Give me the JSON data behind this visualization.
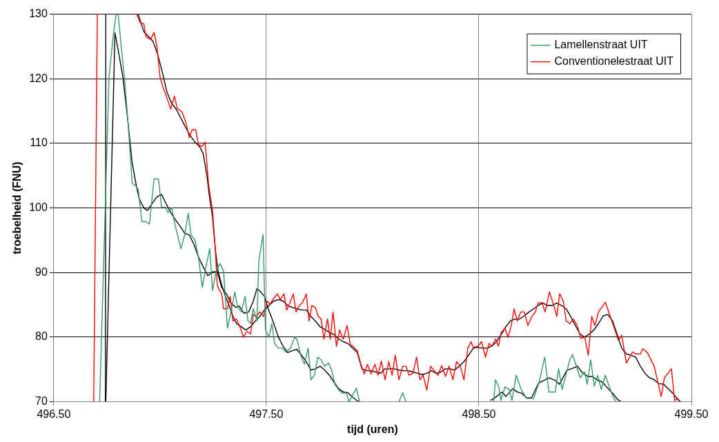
{
  "chart_data": {
    "type": "line",
    "xlabel": "tijd (uren)",
    "ylabel": "troebelheid (FNU)",
    "xlim": [
      496.5,
      499.5
    ],
    "xticks": [
      {
        "value": 496.5,
        "label": "496.50"
      },
      {
        "value": 497.5,
        "label": "497.50"
      },
      {
        "value": 498.5,
        "label": "498.50"
      },
      {
        "value": 499.5,
        "label": "499.50"
      }
    ],
    "ylim": [
      70,
      130
    ],
    "yticks": [
      70,
      80,
      90,
      100,
      110,
      120,
      130
    ],
    "grid": true,
    "legend": "top right",
    "marker": "none",
    "line_style": "solid",
    "series": [
      {
        "name": "Lamellenstraat UIT",
        "color": "#339966",
        "x": [
          496.716,
          496.76,
          496.782,
          496.793,
          496.798,
          496.803,
          496.819,
          496.836,
          496.854,
          496.869,
          496.884,
          496.897,
          496.915,
          496.932,
          496.95,
          496.972,
          496.993,
          497.007,
          497.024,
          497.037,
          497.055,
          497.072,
          497.098,
          497.116,
          497.133,
          497.146,
          497.164,
          497.181,
          497.199,
          497.216,
          497.234,
          497.247,
          497.264,
          497.282,
          497.299,
          497.317,
          497.334,
          497.352,
          497.365,
          497.382,
          497.4,
          497.413,
          497.426,
          497.439,
          497.456,
          497.465,
          497.485,
          497.496,
          497.513,
          497.526,
          497.539,
          497.557,
          497.574,
          497.592,
          497.614,
          497.633,
          497.644,
          497.662,
          497.679,
          497.697,
          497.71,
          497.727,
          497.742,
          497.758,
          497.775,
          497.793,
          497.808,
          497.823,
          497.841,
          497.858,
          497.876,
          497.889,
          497.924,
          497.939,
          498.0,
          498.124,
          498.142,
          498.157,
          498.3,
          498.57,
          498.578,
          498.594,
          498.604,
          498.623,
          498.643,
          498.656,
          498.676,
          498.699,
          498.725,
          498.758,
          498.784,
          498.81,
          498.83,
          498.859,
          498.875,
          498.892,
          498.928,
          498.941,
          498.977,
          498.997,
          499.01,
          499.026,
          499.043,
          499.059,
          499.076,
          499.095,
          499.118,
          499.131,
          499.144
        ],
        "values": [
          70,
          120.3,
          127.3,
          130,
          null,
          130,
          124.5,
          118.9,
          111.2,
          103.8,
          103.5,
          102.9,
          97.9,
          97.9,
          97.5,
          104.5,
          104.5,
          100.1,
          100.1,
          99.3,
          100.0,
          97.2,
          93.7,
          95.8,
          99.2,
          95.8,
          95.1,
          92.3,
          87.7,
          90.9,
          93.7,
          87.2,
          90.2,
          91.4,
          90.2,
          81.4,
          83.9,
          87.0,
          84.7,
          83.9,
          86.3,
          82.6,
          82.1,
          84.4,
          82.5,
          91.9,
          95.9,
          81.1,
          80.0,
          82.1,
          79.0,
          78.3,
          78.3,
          77.7,
          78.3,
          80.0,
          79.7,
          77.2,
          75.8,
          78.3,
          73.4,
          74.1,
          76.9,
          76.5,
          75.5,
          76.0,
          74.8,
          72.7,
          71.8,
          71.3,
          71.4,
          70.0,
          72.1,
          70.0,
          null,
          70,
          71.4,
          70,
          null,
          70,
          73.4,
          72.3,
          70.2,
          72.3,
          71.9,
          70.2,
          74.1,
          71.9,
          70.5,
          70.5,
          73.1,
          76.9,
          71.5,
          71.5,
          75.1,
          71.9,
          76.5,
          77.3,
          73.7,
          74.6,
          72.7,
          76.5,
          72.4,
          74.1,
          71.9,
          74.1,
          71.9,
          70.8,
          70.1
        ]
      },
      {
        "name": "Conventionelestraat UIT",
        "color": "#ff0000",
        "x": [
          496.688,
          496.705,
          496.8,
          496.891,
          496.906,
          496.924,
          496.934,
          496.956,
          496.972,
          496.985,
          497.0,
          497.015,
          497.033,
          497.05,
          497.068,
          497.081,
          497.103,
          497.12,
          497.138,
          497.151,
          497.168,
          497.181,
          497.197,
          497.212,
          497.229,
          497.247,
          497.26,
          497.269,
          497.277,
          497.29,
          497.299,
          497.317,
          497.33,
          497.343,
          497.36,
          497.378,
          497.393,
          497.408,
          497.426,
          497.439,
          497.454,
          497.469,
          497.487,
          497.504,
          497.517,
          497.535,
          497.552,
          497.566,
          497.583,
          497.596,
          497.611,
          497.627,
          497.64,
          497.655,
          497.67,
          497.688,
          497.701,
          497.714,
          497.731,
          497.745,
          497.758,
          497.771,
          497.788,
          497.801,
          497.814,
          497.83,
          497.845,
          497.862,
          497.88,
          497.895,
          497.91,
          497.928,
          497.945,
          497.961,
          497.976,
          497.993,
          498.011,
          498.026,
          498.041,
          498.059,
          498.076,
          498.092,
          498.107,
          498.124,
          498.142,
          498.157,
          498.172,
          498.19,
          498.207,
          498.223,
          498.238,
          498.255,
          498.273,
          498.29,
          498.308,
          498.325,
          498.343,
          498.36,
          498.378,
          498.395,
          498.413,
          498.43,
          498.448,
          498.463,
          498.474,
          498.496,
          498.513,
          498.531,
          498.548,
          498.561,
          498.579,
          498.592,
          498.605,
          498.622,
          498.638,
          498.653,
          498.666,
          498.681,
          498.697,
          498.714,
          498.731,
          498.749,
          498.766,
          498.779,
          498.797,
          498.812,
          498.832,
          498.849,
          498.867,
          498.88,
          498.897,
          498.911,
          498.928,
          498.945,
          498.963,
          498.98,
          498.998,
          499.015,
          499.031,
          499.046,
          499.063,
          499.095,
          499.157,
          499.172,
          499.194,
          499.223,
          499.238,
          499.26,
          499.271,
          499.293,
          499.325,
          499.358,
          499.373,
          499.406,
          499.421,
          499.439
        ],
        "values": [
          70,
          130,
          null,
          130,
          128.7,
          128.5,
          126.5,
          126.1,
          127.2,
          125.1,
          120.3,
          118.6,
          117.0,
          115.3,
          117.3,
          115.4,
          114.9,
          113.4,
          110.9,
          112.1,
          112.1,
          109.8,
          109.5,
          110.2,
          103.5,
          99.6,
          93.7,
          88.1,
          87.4,
          86.7,
          84.4,
          84.4,
          86.3,
          82.5,
          82.8,
          81.4,
          80.0,
          80.9,
          80.5,
          83.5,
          83.2,
          83.9,
          83.2,
          85.6,
          85.1,
          86.0,
          86.7,
          85.8,
          86.7,
          84.2,
          85.3,
          86.7,
          83.9,
          84.9,
          85.3,
          86.7,
          82.5,
          84.9,
          84.6,
          83.2,
          82.8,
          79.7,
          82.8,
          79.7,
          83.9,
          78.6,
          81.1,
          79.7,
          81.8,
          78.9,
          78.5,
          77.9,
          75.8,
          74.3,
          75.8,
          74.3,
          75.8,
          74.1,
          76.3,
          73.4,
          76.2,
          74.1,
          77.2,
          73.4,
          75.5,
          75.5,
          74.1,
          74.4,
          76.9,
          73.4,
          74.1,
          71.8,
          75.5,
          74.8,
          74.1,
          75.6,
          73.9,
          75.5,
          73.4,
          76.2,
          75.5,
          73.4,
          78.3,
          79.3,
          78.4,
          78.6,
          79.3,
          76.9,
          79.0,
          78.6,
          79.7,
          78.6,
          80.7,
          81.4,
          80.0,
          81.9,
          84.4,
          82.5,
          83.9,
          83.9,
          81.8,
          83.2,
          83.9,
          85.3,
          85.3,
          83.9,
          87.0,
          85.3,
          83.2,
          86.7,
          85.6,
          82.5,
          82.1,
          82.8,
          81.8,
          79.8,
          80.0,
          77.2,
          83.2,
          81.8,
          83.9,
          85.4,
          79.5,
          80.3,
          76.0,
          77.7,
          77.4,
          77.4,
          78.2,
          77.6,
          75.5,
          70.8,
          73.7,
          75.1,
          70.2,
          70.5
        ]
      },
      {
        "color": "#000000",
        "x": [
          496.745,
          496.788,
          496.803,
          496.825,
          496.847,
          496.869,
          496.884,
          496.902,
          496.924,
          496.941,
          496.963,
          496.985,
          497.007,
          497.028,
          497.05,
          497.072,
          497.094,
          497.116,
          497.138,
          497.159,
          497.181,
          497.203,
          497.225,
          497.247,
          497.269,
          497.29,
          497.312,
          497.334,
          497.356,
          497.373,
          497.395,
          497.417,
          497.439,
          497.456,
          497.474,
          497.491,
          497.509,
          497.531,
          497.557,
          497.579,
          497.6,
          497.622,
          497.644,
          497.666,
          497.688,
          497.71,
          497.731,
          497.753,
          497.775,
          497.797,
          497.819,
          497.841,
          497.863,
          497.884,
          497.906,
          497.926,
          497.935,
          498.0,
          498.55,
          498.555,
          498.571,
          498.61,
          498.627,
          498.659,
          498.682,
          498.702,
          498.725,
          498.748,
          498.781,
          498.8,
          498.83,
          498.859,
          498.879,
          498.915,
          498.935,
          498.964,
          498.984,
          499.013,
          499.033,
          499.056,
          499.079,
          499.098,
          499.127,
          499.154,
          499.167
        ],
        "values": [
          70,
          127.1,
          124.5,
          120.3,
          114.0,
          107.0,
          104.2,
          101.4,
          100.0,
          99.6,
          100.7,
          101.7,
          102.1,
          100.7,
          99.3,
          98.2,
          97.2,
          96.1,
          95.8,
          94.4,
          92.4,
          90.9,
          89.5,
          90.1,
          90.2,
          87.7,
          86.7,
          85.3,
          84.6,
          84.8,
          83.7,
          83.9,
          85.6,
          87.5,
          87.0,
          86.3,
          84.4,
          82.5,
          80.0,
          78.6,
          77.6,
          77.9,
          78.1,
          77.2,
          76.2,
          74.9,
          75.1,
          75.5,
          74.9,
          74.1,
          73.0,
          72.0,
          71.5,
          71.4,
          70.7,
          70.2,
          70.0,
          null,
          null,
          70.2,
          70.5,
          71.5,
          70.8,
          72.0,
          71.5,
          71.3,
          70.6,
          70.6,
          72.9,
          73.2,
          73.7,
          73.3,
          72.7,
          74.9,
          75.1,
          75.5,
          74.6,
          73.9,
          73.9,
          73.4,
          73.1,
          72.4,
          71.4,
          70.3,
          70.1
        ]
      },
      {
        "color": "#000000",
        "x": [
          496.743,
          496.745,
          496.82,
          496.897,
          496.924,
          496.945,
          496.967,
          496.989,
          497.011,
          497.033,
          497.055,
          497.076,
          497.098,
          497.12,
          497.142,
          497.164,
          497.186,
          497.203,
          497.221,
          497.234,
          497.247,
          497.26,
          497.273,
          497.29,
          497.308,
          497.325,
          497.343,
          497.36,
          497.382,
          497.404,
          497.426,
          497.448,
          497.469,
          497.491,
          497.513,
          497.535,
          497.557,
          497.579,
          497.6,
          497.622,
          497.644,
          497.666,
          497.688,
          497.71,
          497.731,
          497.753,
          497.775,
          497.797,
          497.819,
          497.841,
          497.862,
          497.884,
          497.906,
          497.928,
          497.95,
          497.972,
          497.993,
          498.015,
          498.037,
          498.059,
          498.081,
          498.103,
          498.124,
          498.146,
          498.168,
          498.19,
          498.212,
          498.234,
          498.255,
          498.277,
          498.299,
          498.321,
          498.343,
          498.365,
          498.386,
          498.408,
          498.43,
          498.452,
          498.474,
          498.496,
          498.517,
          498.539,
          498.561,
          498.583,
          498.605,
          498.627,
          498.648,
          498.67,
          498.692,
          498.714,
          498.736,
          498.758,
          498.779,
          498.801,
          498.823,
          498.845,
          498.867,
          498.889,
          498.91,
          498.932,
          498.954,
          498.976,
          498.998,
          499.02,
          499.041,
          499.063,
          499.085,
          499.107,
          499.129,
          499.151,
          499.172,
          499.194,
          499.216,
          499.238,
          499.26,
          499.282,
          499.303,
          499.325,
          499.347,
          499.369,
          499.391,
          499.413,
          499.43,
          499.448
        ],
        "values": [
          70,
          130,
          null,
          130,
          127.3,
          126.6,
          125.8,
          123.8,
          121.0,
          117.9,
          116.2,
          115.3,
          113.9,
          112.5,
          111.2,
          110.2,
          109.5,
          108.4,
          104.9,
          101.4,
          98.6,
          93.7,
          90.2,
          88.1,
          86.3,
          84.9,
          83.2,
          82.1,
          81.6,
          81.1,
          81.6,
          82.5,
          83.2,
          84.2,
          84.9,
          85.6,
          85.8,
          85.6,
          84.9,
          84.6,
          84.4,
          84.2,
          84.2,
          83.2,
          82.5,
          81.6,
          81.2,
          80.7,
          80.4,
          79.7,
          79.3,
          79.0,
          78.3,
          77.6,
          75.1,
          74.8,
          74.8,
          74.6,
          74.4,
          75.1,
          75.1,
          75.1,
          74.9,
          74.8,
          74.8,
          74.6,
          74.4,
          74.2,
          74.4,
          74.8,
          74.4,
          74.6,
          75.1,
          75.1,
          74.9,
          75.5,
          76.2,
          77.2,
          78.3,
          78.4,
          78.3,
          78.3,
          78.6,
          79.3,
          80.4,
          81.6,
          82.5,
          82.8,
          82.8,
          83.3,
          83.9,
          84.4,
          84.9,
          85.3,
          84.9,
          84.9,
          85.3,
          84.9,
          84.4,
          83.2,
          81.8,
          80.5,
          80.0,
          80.5,
          81.1,
          82.1,
          83.3,
          83.5,
          82.5,
          80.4,
          78.3,
          77.4,
          77.2,
          76.9,
          75.5,
          74.4,
          73.7,
          73.4,
          72.8,
          72.7,
          72.0,
          71.3,
          70.6,
          70.0
        ]
      }
    ]
  }
}
